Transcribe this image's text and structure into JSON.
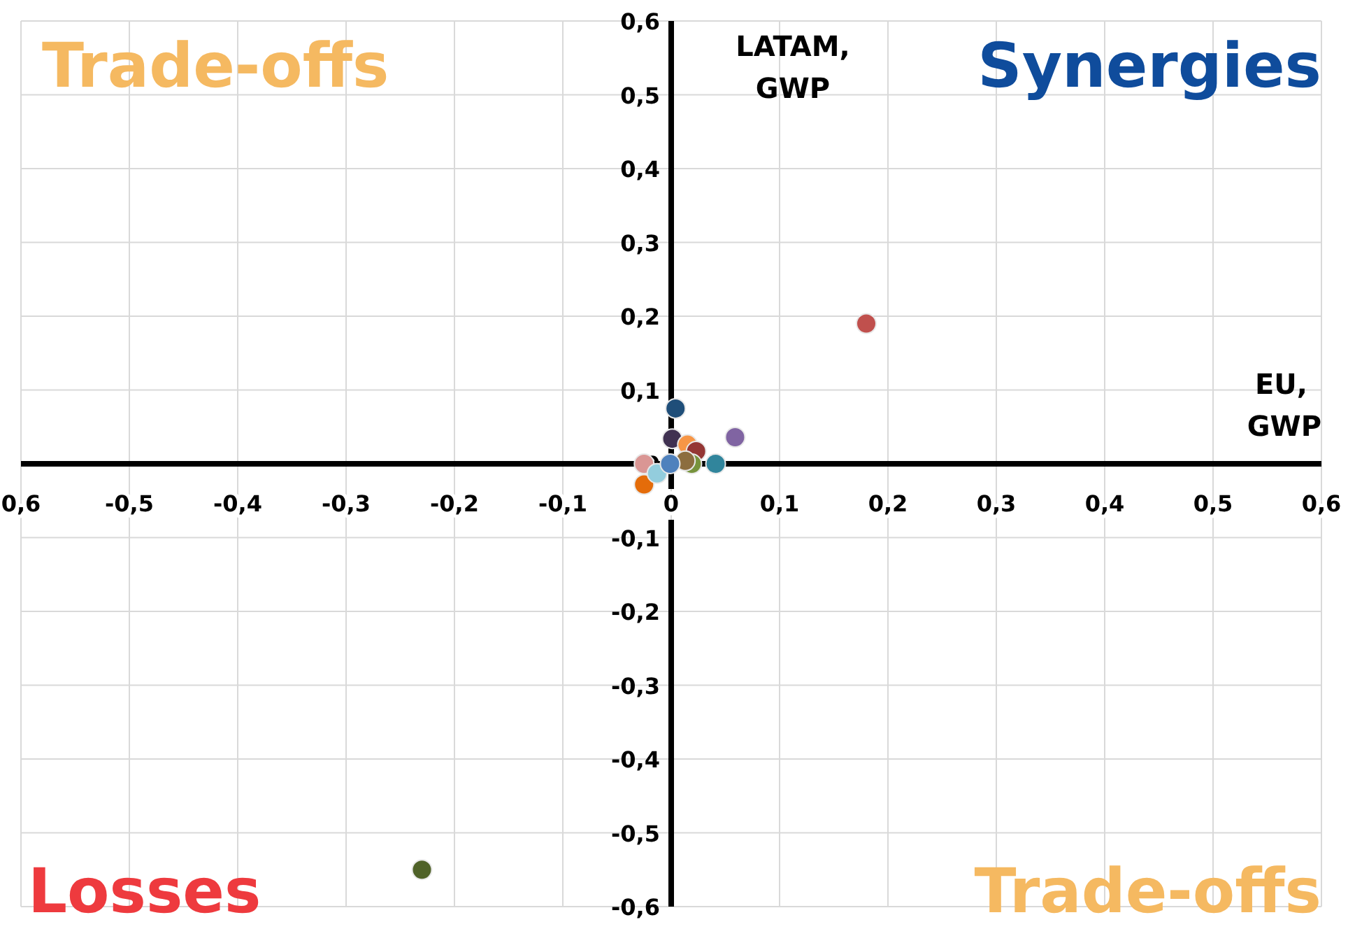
{
  "chart_data": {
    "type": "scatter",
    "xlabel": "EU, GWP",
    "ylabel": "LATAM, GWP",
    "annotations": [
      "Trade-offs",
      "Synergies",
      "Losses",
      "Trade-offs"
    ],
    "x": [
      0.18,
      -0.23,
      0.004,
      0.059,
      0.001,
      0.015,
      0.023,
      0.041,
      0.019,
      -0.025,
      -0.025,
      -0.013,
      0.013,
      -0.001
    ],
    "values": [
      0.19,
      -0.55,
      0.075,
      0.036,
      0.034,
      0.026,
      0.017,
      0,
      0,
      0,
      -0.028,
      -0.013,
      0.004,
      0
    ],
    "colors": [
      "#c0504d",
      "#4f6228",
      "#1f4e79",
      "#8064a2",
      "#403151",
      "#f79646",
      "#943634",
      "#31859c",
      "#77933c",
      "#da9694",
      "#e46c0a",
      "#93cddd",
      "#8c6d3f",
      "#4f81bd"
    ],
    "xlim": [
      -0.6,
      0.6
    ],
    "ylim": [
      -0.6,
      0.6
    ],
    "xticks": [
      {
        "value": -0.6,
        "label": "0,6"
      },
      {
        "value": -0.5,
        "label": "-0,5"
      },
      {
        "value": -0.4,
        "label": "-0,4"
      },
      {
        "value": -0.3,
        "label": "-0,3"
      },
      {
        "value": -0.2,
        "label": "-0,2"
      },
      {
        "value": -0.1,
        "label": "-0,1"
      },
      0,
      {
        "value": 0.1,
        "label": "0,1"
      },
      {
        "value": 0.2,
        "label": "0,2"
      },
      {
        "value": 0.3,
        "label": "0,3"
      },
      {
        "value": 0.4,
        "label": "0,4"
      },
      {
        "value": 0.5,
        "label": "0,5"
      },
      {
        "value": 0.6,
        "label": "0,6"
      }
    ],
    "yticks": [
      {
        "value": -0.6,
        "label": "-0,6"
      },
      {
        "value": -0.5,
        "label": "-0,5"
      },
      {
        "value": -0.4,
        "label": "-0,4"
      },
      {
        "value": -0.3,
        "label": "-0,3"
      },
      {
        "value": -0.2,
        "label": "-0,2"
      },
      {
        "value": -0.1,
        "label": "-0,1"
      },
      0,
      {
        "value": 0.1,
        "label": "0,1"
      },
      {
        "value": 0.2,
        "label": "0,2"
      },
      {
        "value": 0.3,
        "label": "0,3"
      },
      {
        "value": 0.4,
        "label": "0,4"
      },
      {
        "value": 0.5,
        "label": "0,5"
      },
      {
        "value": 0.6,
        "label": "0,6"
      }
    ],
    "grid": true,
    "marker": "circle"
  }
}
